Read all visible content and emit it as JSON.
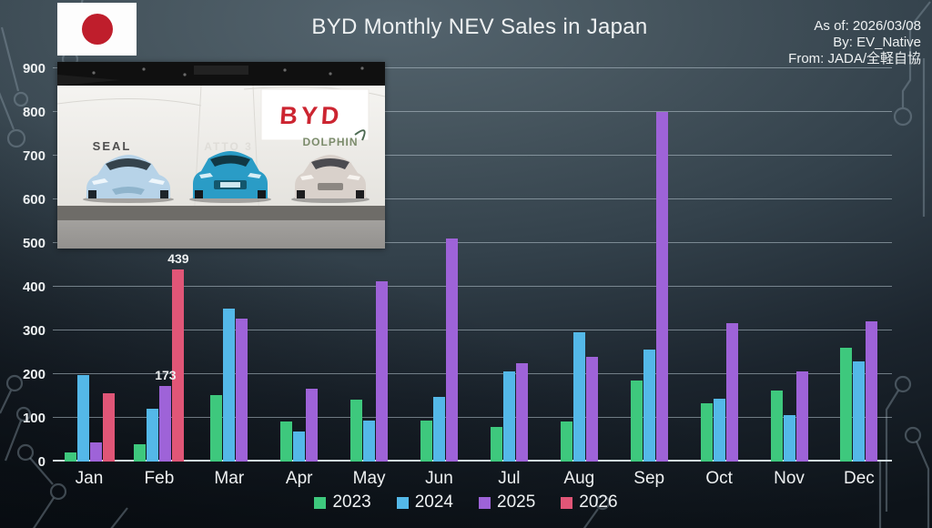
{
  "header": {
    "title": "BYD Monthly NEV Sales in Japan",
    "as_of": "As of: 2026/03/08",
    "by": "By: EV_Native",
    "from": "From: JADA/全軽自協"
  },
  "flag": {
    "country": "Japan"
  },
  "photo": {
    "brand_logo": "BYD",
    "left_car_label": "SEAL",
    "center_car_label": "ATTO 3",
    "right_car_label": "DOLPHIN"
  },
  "chart_data": {
    "type": "bar",
    "title": "BYD Monthly NEV Sales in Japan",
    "categories": [
      "Jan",
      "Feb",
      "Mar",
      "Apr",
      "May",
      "Jun",
      "Jul",
      "Aug",
      "Sep",
      "Oct",
      "Nov",
      "Dec"
    ],
    "series": [
      {
        "name": "2023",
        "color": "#3ec87d",
        "values": [
          20,
          40,
          152,
          92,
          142,
          94,
          79,
          92,
          185,
          133,
          163,
          260
        ]
      },
      {
        "name": "2024",
        "color": "#54b8e8",
        "values": [
          198,
          121,
          350,
          69,
          94,
          148,
          206,
          296,
          256,
          144,
          106,
          229
        ]
      },
      {
        "name": "2025",
        "color": "#9e63d8",
        "values": [
          44,
          173,
          327,
          167,
          413,
          510,
          225,
          240,
          800,
          317,
          206,
          321
        ]
      },
      {
        "name": "2026",
        "color": "#e05677",
        "values": [
          156,
          439,
          null,
          null,
          null,
          null,
          null,
          null,
          null,
          null,
          null,
          null
        ]
      }
    ],
    "annotations": [
      {
        "series": "2025",
        "category": "Feb",
        "text": "173"
      },
      {
        "series": "2026",
        "category": "Feb",
        "text": "439"
      }
    ],
    "xlabel": "",
    "ylabel": "",
    "ylim": [
      0,
      900
    ],
    "yticks": [
      0,
      100,
      200,
      300,
      400,
      500,
      600,
      700,
      800,
      900
    ],
    "grid": true,
    "legend_position": "bottom"
  }
}
